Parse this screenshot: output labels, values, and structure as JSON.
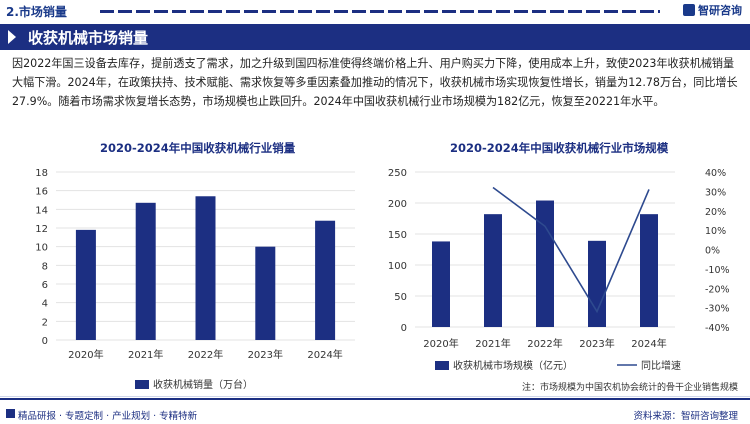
{
  "header": {
    "section": "2.市场销量",
    "brand": "智研咨询"
  },
  "hero": {
    "title": "收获机械市场销量"
  },
  "paragraph": "因2022年国三设备去库存，提前透支了需求，加之升级到国四标准使得终端价格上升、用户购买力下降，使用成本上升，致使2023年收获机械销量大幅下滑。2024年，在政策扶持、技术赋能、需求恢复等多重因素叠加推动的情况下，收获机械市场实现恢复性增长，销量为12.78万台，同比增长27.9%。随着市场需求恢复增长态势，市场规模也止跌回升。2024年中国收获机械行业市场规模为182亿元，恢复至20221年水平。",
  "footer": {
    "note": "注：市场规模为中国农机协会统计的骨干企业销售规模",
    "left": "精品研报 · 专题定制 · 产业规划 · 专精特新",
    "right": "资料来源：智研咨询整理"
  },
  "colors": {
    "primary": "#1c2f82",
    "line": "#2e4a8f",
    "grid": "#e3e3e3"
  },
  "chart_data": [
    {
      "type": "bar",
      "title": "2020-2024年中国收获机械行业销量",
      "categories": [
        "2020年",
        "2021年",
        "2022年",
        "2023年",
        "2024年"
      ],
      "series": [
        {
          "name": "收获机械销量（万台）",
          "values": [
            11.8,
            14.7,
            15.4,
            10.0,
            12.78
          ]
        }
      ],
      "ylim": [
        0,
        18
      ],
      "yticks": [
        "0",
        "2",
        "4",
        "6",
        "8",
        "10",
        "12",
        "14",
        "16",
        "18"
      ],
      "legend": "bottom"
    },
    {
      "type": "bar",
      "title": "2020-2024年中国收获机械行业市场规模",
      "categories": [
        "2020年",
        "2021年",
        "2022年",
        "2023年",
        "2024年"
      ],
      "series": [
        {
          "name": "收获机械市场规模（亿元）",
          "type": "bar",
          "axis": "left",
          "values": [
            138,
            182,
            204,
            139,
            182
          ]
        },
        {
          "name": "同比增速",
          "type": "line",
          "axis": "right",
          "values": [
            null,
            32,
            12,
            -32,
            31
          ]
        }
      ],
      "ylim": [
        0,
        250
      ],
      "yticks": [
        "0",
        "50",
        "100",
        "150",
        "200",
        "250"
      ],
      "y2lim": [
        -40,
        40
      ],
      "y2ticks": [
        "-40%",
        "-30%",
        "-20%",
        "-10%",
        "0%",
        "10%",
        "20%",
        "30%",
        "40%"
      ],
      "legend": "bottom"
    }
  ]
}
